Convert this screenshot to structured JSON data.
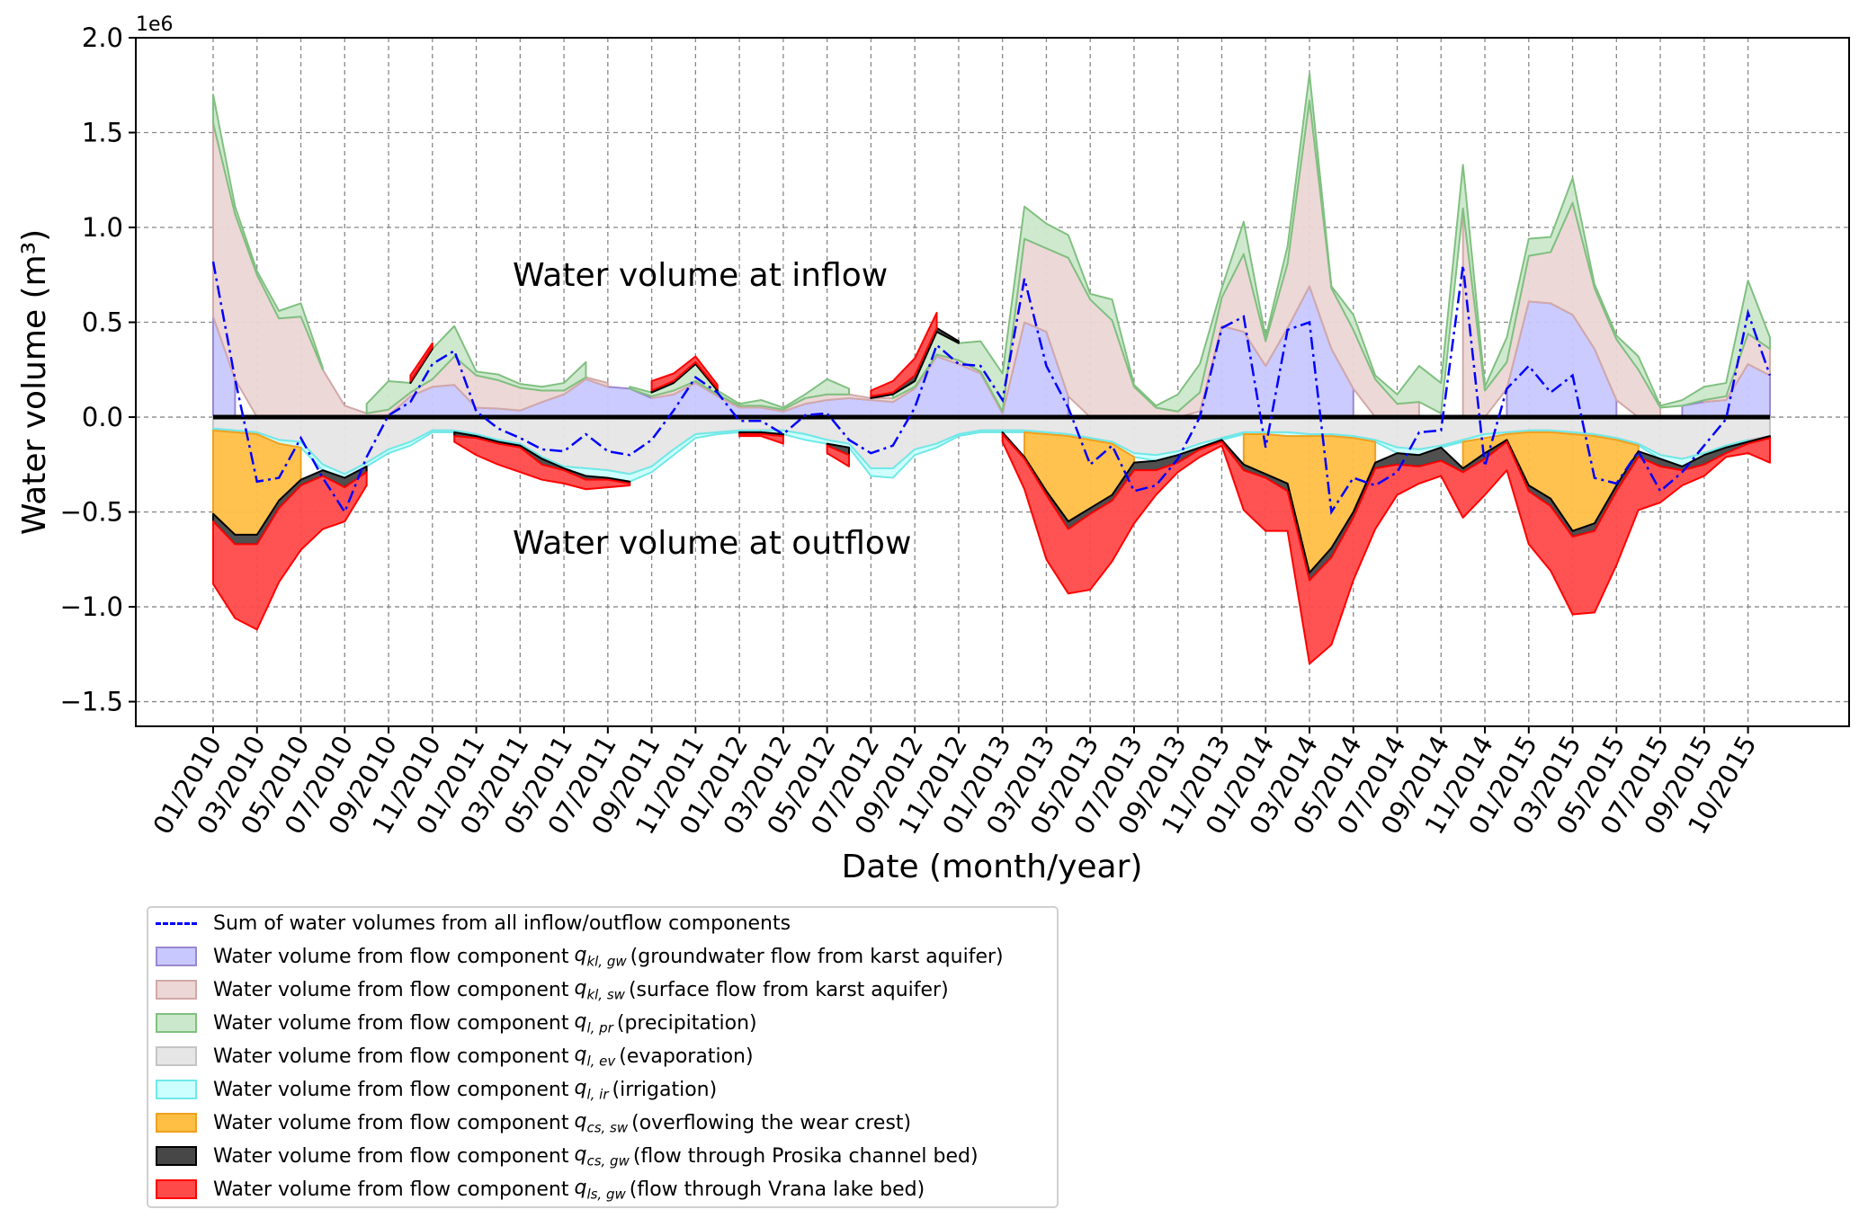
{
  "chart_data": {
    "type": "area",
    "ylabel": "Water volume (m³)",
    "xlabel": "Date (month/year)",
    "y_offset_label": "1e6",
    "ylim": [
      -1.63,
      2.0
    ],
    "yticks": [
      -1.5,
      -1.0,
      -0.5,
      0.0,
      0.5,
      1.0,
      1.5,
      2.0
    ],
    "ytick_labels": [
      "−1.5",
      "−1.0",
      "−0.5",
      "0.0",
      "0.5",
      "1.0",
      "1.5",
      "2.0"
    ],
    "grid": true,
    "legend_position": "below-left",
    "annotations": [
      "Water volume at inflow",
      "Water volume at outflow"
    ],
    "xtick_labels": [
      "01/2010",
      "03/2010",
      "05/2010",
      "07/2010",
      "09/2010",
      "11/2010",
      "01/2011",
      "03/2011",
      "05/2011",
      "07/2011",
      "09/2011",
      "11/2011",
      "01/2012",
      "03/2012",
      "05/2012",
      "07/2012",
      "09/2012",
      "11/2012",
      "01/2013",
      "03/2013",
      "05/2013",
      "07/2013",
      "09/2013",
      "11/2013",
      "01/2014",
      "03/2014",
      "05/2014",
      "07/2014",
      "09/2014",
      "11/2014",
      "01/2015",
      "03/2015",
      "05/2015",
      "07/2015",
      "09/2015",
      "10/2015"
    ],
    "unit_scale": "values in 1e6 m³",
    "series": [
      {
        "key": "kl_gw",
        "name": "Water volume from flow component",
        "sub": "kl, gw",
        "desc": "(groundwater flow from karst aquifer)",
        "fill": "#c8c8ff",
        "stroke": "#9a88d0",
        "values": [
          0.53,
          0.2,
          0,
          0,
          0,
          0,
          0,
          0,
          0.01,
          0.11,
          0.16,
          0.17,
          0.05,
          0.045,
          0.035,
          0.08,
          0.12,
          0.2,
          0.16,
          0.15,
          0.1,
          0.12,
          0.18,
          0.11,
          0.05,
          0.05,
          0.03,
          0.07,
          0.09,
          0.1,
          0.09,
          0.08,
          0.15,
          0.32,
          0.28,
          0.23,
          0.02,
          0.5,
          0.45,
          0.11,
          0,
          0,
          0,
          0,
          0,
          0.03,
          0.48,
          0.45,
          0.27,
          0.47,
          0.69,
          0.36,
          0.15,
          0,
          0,
          0,
          0.02,
          0,
          0,
          0.15,
          0.61,
          0.6,
          0.54,
          0.36,
          0.09,
          0,
          0,
          0.06,
          0.08,
          0.09,
          0.28,
          0.22
        ]
      },
      {
        "key": "kl_sw",
        "name": "Water volume from flow component",
        "sub": "kl, sw",
        "desc": "(surface flow from karst aquifer)",
        "fill": "#ecd6d6",
        "stroke": "#d2a8a8",
        "values": [
          1.02,
          0.87,
          0.75,
          0.52,
          0.53,
          0.25,
          0.06,
          0.02,
          0.03,
          0.02,
          0.04,
          0.15,
          0.17,
          0.15,
          0.12,
          0.06,
          0.02,
          0.01,
          0.02,
          0,
          0.01,
          0.02,
          0.01,
          0.01,
          0.01,
          0.01,
          0.01,
          0.03,
          0.03,
          0.02,
          0.01,
          0.02,
          0.01,
          0.01,
          0.02,
          0.01,
          0.01,
          0.44,
          0.44,
          0.73,
          0.62,
          0.51,
          0.16,
          0.05,
          0.03,
          0.1,
          0.15,
          0.41,
          0.13,
          0.34,
          0.98,
          0.32,
          0.31,
          0.2,
          0.07,
          0.08,
          0,
          1.1,
          0.14,
          0.14,
          0.24,
          0.27,
          0.59,
          0.32,
          0.32,
          0.25,
          0.05,
          0,
          0.01,
          0.02,
          0.16,
          0.14
        ]
      },
      {
        "key": "pr",
        "name": "Water volume from flow component",
        "sub": "l, pr",
        "desc": "(precipitation)",
        "fill": "#cce8cc",
        "stroke": "#80c080",
        "values": [
          0.15,
          0.04,
          0.02,
          0.04,
          0.07,
          0.01,
          0,
          0.05,
          0.15,
          0.05,
          0.16,
          0.16,
          0.02,
          0.03,
          0.02,
          0.02,
          0.04,
          0.08,
          0,
          0.01,
          0.02,
          0.04,
          0.09,
          0.02,
          0.01,
          0.03,
          0.01,
          0.02,
          0.08,
          0.03,
          0,
          0.02,
          0.03,
          0.12,
          0.09,
          0.16,
          0.2,
          0.17,
          0.13,
          0.12,
          0.03,
          0.11,
          0.01,
          0.01,
          0.09,
          0.15,
          0.05,
          0.17,
          0.02,
          0.09,
          0.14,
          0.01,
          0.08,
          0.02,
          0.05,
          0.19,
          0.16,
          0.23,
          0.02,
          0.13,
          0.09,
          0.08,
          0.13,
          0.02,
          0.02,
          0.07,
          0.01,
          0.03,
          0.07,
          0.07,
          0.28,
          0.06
        ]
      },
      {
        "key": "ev",
        "name": "Water volume from flow component",
        "sub": "l, ev",
        "desc": "(evaporation)",
        "fill": "#e6e6e6",
        "stroke": "#c4c4c4",
        "values": [
          -0.06,
          -0.07,
          -0.08,
          -0.12,
          -0.13,
          -0.25,
          -0.3,
          -0.24,
          -0.17,
          -0.13,
          -0.07,
          -0.07,
          -0.09,
          -0.12,
          -0.14,
          -0.21,
          -0.26,
          -0.27,
          -0.28,
          -0.3,
          -0.26,
          -0.17,
          -0.09,
          -0.08,
          -0.07,
          -0.07,
          -0.07,
          -0.09,
          -0.12,
          -0.14,
          -0.27,
          -0.27,
          -0.17,
          -0.14,
          -0.09,
          -0.07,
          -0.07,
          -0.07,
          -0.08,
          -0.09,
          -0.11,
          -0.13,
          -0.19,
          -0.2,
          -0.18,
          -0.14,
          -0.11,
          -0.08,
          -0.08,
          -0.08,
          -0.09,
          -0.09,
          -0.1,
          -0.12,
          -0.16,
          -0.17,
          -0.15,
          -0.12,
          -0.09,
          -0.08,
          -0.07,
          -0.07,
          -0.08,
          -0.09,
          -0.11,
          -0.14,
          -0.2,
          -0.22,
          -0.19,
          -0.15,
          -0.12,
          -0.1
        ]
      },
      {
        "key": "ir",
        "name": "Water volume from flow component",
        "sub": "l, ir",
        "desc": "(irrigation)",
        "fill": "#ccffff",
        "stroke": "#70e8e8",
        "values": [
          -0.01,
          -0.01,
          -0.01,
          -0.02,
          -0.03,
          -0.03,
          -0.02,
          -0.02,
          -0.02,
          -0.02,
          -0.01,
          -0.01,
          -0.01,
          -0.01,
          -0.01,
          -0.01,
          -0.01,
          -0.04,
          -0.04,
          -0.04,
          -0.03,
          -0.03,
          -0.02,
          -0.01,
          -0.01,
          -0.01,
          -0.02,
          -0.03,
          -0.02,
          -0.02,
          -0.04,
          -0.05,
          -0.03,
          -0.02,
          -0.01,
          -0.01,
          -0.01,
          -0.01,
          -0.01,
          -0.01,
          -0.01,
          -0.01,
          -0.02,
          -0.03,
          -0.02,
          -0.02,
          -0.01,
          -0.01,
          -0.01,
          -0.02,
          -0.01,
          -0.01,
          -0.01,
          -0.01,
          -0.03,
          -0.03,
          -0.01,
          -0.01,
          -0.02,
          -0.01,
          -0.01,
          -0.01,
          -0.01,
          -0.01,
          -0.01,
          -0.01,
          -0.02,
          -0.04,
          -0.01,
          -0.01,
          -0.01,
          0
        ]
      },
      {
        "key": "cs_sw",
        "name": "Water volume from flow component",
        "sub": "cs, sw",
        "desc": "(overflowing the wear crest)",
        "fill": "#ffbf44",
        "stroke": "#f0a020",
        "values": [
          -0.44,
          -0.54,
          -0.53,
          -0.3,
          -0.17,
          0,
          0,
          0,
          0,
          0,
          0,
          0,
          0,
          0,
          0,
          0,
          0,
          0,
          0,
          0,
          0,
          0,
          0,
          0,
          0,
          0,
          0,
          0,
          0,
          0,
          0,
          0,
          0,
          0,
          0,
          0,
          0,
          -0.13,
          -0.3,
          -0.45,
          -0.36,
          -0.27,
          -0.03,
          0,
          0,
          0,
          0,
          -0.16,
          -0.21,
          -0.25,
          -0.72,
          -0.59,
          -0.39,
          -0.11,
          0,
          0,
          0,
          -0.14,
          -0.08,
          -0.03,
          -0.28,
          -0.35,
          -0.51,
          -0.46,
          -0.24,
          -0.03,
          0,
          0,
          0,
          0,
          0,
          0
        ]
      },
      {
        "key": "cs_gw",
        "name": "Water volume from flow component",
        "sub": "cs, gw",
        "desc": "(flow through Prosika channel bed)",
        "fill": "#474747",
        "stroke": "#000000",
        "values": [
          -0.04,
          -0.05,
          -0.05,
          -0.04,
          -0.03,
          -0.03,
          -0.05,
          -0.03,
          0,
          0.01,
          0.01,
          -0.02,
          -0.01,
          -0.01,
          -0.01,
          -0.03,
          -0.01,
          -0.02,
          -0.01,
          -0.01,
          0.01,
          0.01,
          0.01,
          0.01,
          -0.01,
          -0.01,
          -0.01,
          0,
          -0.01,
          -0.04,
          0.01,
          0.01,
          0.03,
          0.02,
          0.01,
          0,
          -0.01,
          -0.01,
          -0.02,
          -0.04,
          -0.03,
          -0.03,
          -0.04,
          -0.05,
          -0.04,
          -0.01,
          -0.01,
          -0.03,
          -0.02,
          -0.04,
          -0.04,
          -0.05,
          -0.03,
          -0.03,
          -0.06,
          -0.06,
          -0.07,
          -0.02,
          -0.03,
          -0.01,
          -0.03,
          -0.04,
          -0.03,
          -0.04,
          -0.03,
          -0.03,
          -0.04,
          -0.02,
          -0.05,
          -0.03,
          -0.01,
          -0.01
        ]
      },
      {
        "key": "ls_gw",
        "name": "Water volume from flow component",
        "sub": "ls, gw",
        "desc": "(flow through Vrana lake bed)",
        "fill": "#ff4a4a",
        "stroke": "#ff0000",
        "values": [
          -0.33,
          -0.39,
          -0.45,
          -0.39,
          -0.34,
          -0.28,
          -0.18,
          -0.07,
          0,
          0.03,
          0.02,
          -0.03,
          -0.09,
          -0.11,
          -0.13,
          -0.08,
          -0.07,
          -0.05,
          -0.04,
          -0.01,
          0.05,
          0.04,
          0.03,
          0.02,
          -0.01,
          -0.01,
          -0.04,
          0,
          -0.04,
          -0.06,
          0.03,
          0.06,
          0.09,
          0.08,
          0,
          0,
          -0.04,
          -0.16,
          -0.34,
          -0.34,
          -0.4,
          -0.32,
          -0.28,
          -0.13,
          -0.05,
          -0.04,
          -0.02,
          -0.21,
          -0.28,
          -0.21,
          -0.44,
          -0.46,
          -0.33,
          -0.32,
          -0.16,
          -0.09,
          -0.08,
          -0.24,
          -0.19,
          -0.15,
          -0.28,
          -0.34,
          -0.41,
          -0.43,
          -0.39,
          -0.28,
          -0.19,
          -0.08,
          -0.06,
          -0.02,
          -0.05,
          -0.13
        ]
      }
    ],
    "sum_series": {
      "name": "Sum of water volumes from all inflow/outflow components",
      "color": "#0000ff",
      "values": [
        0.82,
        0.2,
        -0.34,
        -0.32,
        -0.11,
        -0.32,
        -0.5,
        -0.21,
        0.01,
        0.08,
        0.28,
        0.35,
        0.03,
        -0.06,
        -0.11,
        -0.17,
        -0.18,
        -0.09,
        -0.18,
        -0.2,
        -0.12,
        0.035,
        0.21,
        0.13,
        -0.02,
        -0.02,
        -0.09,
        0.01,
        0.02,
        -0.12,
        -0.19,
        -0.15,
        0.05,
        0.38,
        0.28,
        0.27,
        0.09,
        0.73,
        0.27,
        0.05,
        -0.25,
        -0.15,
        -0.39,
        -0.36,
        -0.22,
        0,
        0.47,
        0.53,
        -0.16,
        0.46,
        0.5,
        -0.5,
        -0.32,
        -0.36,
        -0.29,
        -0.08,
        -0.07,
        0.8,
        -0.26,
        0.15,
        0.27,
        0.13,
        0.22,
        -0.32,
        -0.35,
        -0.18,
        -0.39,
        -0.29,
        -0.15,
        -0.01,
        0.55,
        0.22
      ]
    }
  }
}
